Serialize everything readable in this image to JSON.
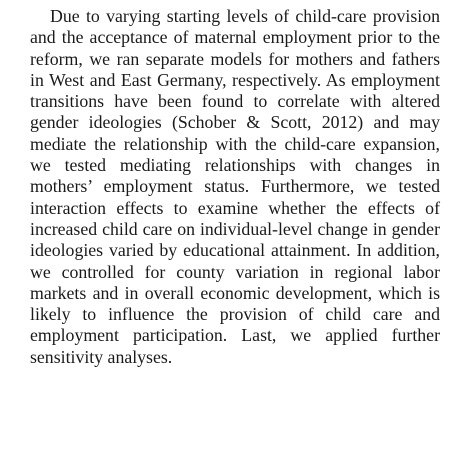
{
  "paragraph": "Due to varying starting levels of child-care provision and the acceptance of maternal employment prior to the reform, we ran separate models for mothers and fathers in West and East Germany, respectively. As employment transi­tions have been found to correlate with altered gender ideologies (Schober & Scott, 2012) and may mediate the relationship with the child-care expansion, we tested mediating relationships with changes in mothers’ employment status. Furthermore, we tested interaction effects to examine whether the effects of increased child care on individual-level change in gender ide­ologies varied by educational attainment. In addition, we controlled for county variation in regional labor markets and in overall economic development, which is likely to influence the provision of child care and employment par­ticipation. Last, we applied further sensitivity analyses."
}
